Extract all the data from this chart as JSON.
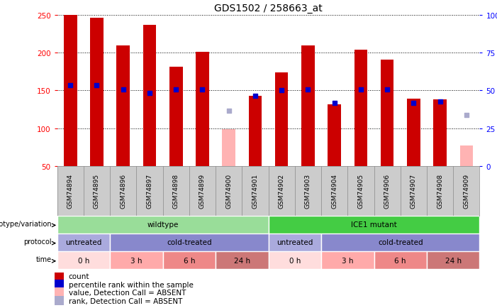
{
  "title": "GDS1502 / 258663_at",
  "samples": [
    "GSM74894",
    "GSM74895",
    "GSM74896",
    "GSM74897",
    "GSM74898",
    "GSM74899",
    "GSM74900",
    "GSM74901",
    "GSM74902",
    "GSM74903",
    "GSM74904",
    "GSM74905",
    "GSM74906",
    "GSM74907",
    "GSM74908",
    "GSM74909"
  ],
  "count_values": [
    250,
    246,
    209,
    237,
    181,
    201,
    null,
    143,
    174,
    209,
    132,
    204,
    191,
    139,
    138,
    null
  ],
  "count_absent": [
    null,
    null,
    null,
    null,
    null,
    null,
    99,
    null,
    null,
    null,
    null,
    null,
    null,
    null,
    null,
    77
  ],
  "percentile_values": [
    157,
    157,
    151,
    147,
    151,
    151,
    null,
    143,
    150,
    151,
    133,
    151,
    151,
    133,
    135,
    null
  ],
  "percentile_absent": [
    null,
    null,
    null,
    null,
    null,
    null,
    123,
    null,
    null,
    null,
    null,
    null,
    null,
    null,
    null,
    117
  ],
  "ylim_left": [
    50,
    250
  ],
  "ylim_right": [
    0,
    100
  ],
  "yticks_left": [
    50,
    100,
    150,
    200,
    250
  ],
  "yticks_right": [
    0,
    25,
    50,
    75,
    100
  ],
  "bar_width": 0.5,
  "bar_color_present": "#cc0000",
  "bar_color_absent": "#ffb3b3",
  "dot_color_present": "#0000cc",
  "dot_color_absent": "#aaaacc",
  "grid_color": "#000000",
  "bg_color": "#ffffff",
  "sample_bg": "#cccccc",
  "groups": [
    {
      "label": "wildtype",
      "start": 0,
      "end": 8,
      "color": "#99dd99"
    },
    {
      "label": "ICE1 mutant",
      "start": 8,
      "end": 16,
      "color": "#44cc44"
    }
  ],
  "protocols": [
    {
      "label": "untreated",
      "start": 0,
      "end": 2,
      "color": "#aaaadd"
    },
    {
      "label": "cold-treated",
      "start": 2,
      "end": 8,
      "color": "#8888cc"
    },
    {
      "label": "untreated",
      "start": 8,
      "end": 10,
      "color": "#aaaadd"
    },
    {
      "label": "cold-treated",
      "start": 10,
      "end": 16,
      "color": "#8888cc"
    }
  ],
  "times": [
    {
      "label": "0 h",
      "start": 0,
      "end": 2,
      "color": "#ffdddd"
    },
    {
      "label": "3 h",
      "start": 2,
      "end": 4,
      "color": "#ffaaaa"
    },
    {
      "label": "6 h",
      "start": 4,
      "end": 6,
      "color": "#ee8888"
    },
    {
      "label": "24 h",
      "start": 6,
      "end": 8,
      "color": "#cc7777"
    },
    {
      "label": "0 h",
      "start": 8,
      "end": 10,
      "color": "#ffdddd"
    },
    {
      "label": "3 h",
      "start": 10,
      "end": 12,
      "color": "#ffaaaa"
    },
    {
      "label": "6 h",
      "start": 12,
      "end": 14,
      "color": "#ee8888"
    },
    {
      "label": "24 h",
      "start": 14,
      "end": 16,
      "color": "#cc7777"
    }
  ],
  "legend_items": [
    {
      "label": "count",
      "color": "#cc0000"
    },
    {
      "label": "percentile rank within the sample",
      "color": "#0000cc"
    },
    {
      "label": "value, Detection Call = ABSENT",
      "color": "#ffb3b3"
    },
    {
      "label": "rank, Detection Call = ABSENT",
      "color": "#aaaacc"
    }
  ],
  "row_labels": [
    "genotype/variation",
    "protocol",
    "time"
  ]
}
